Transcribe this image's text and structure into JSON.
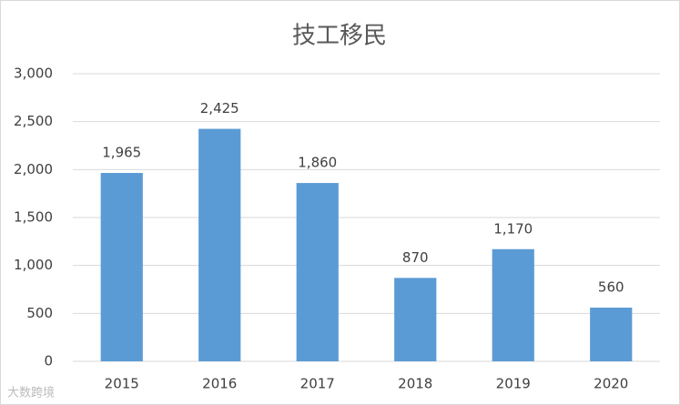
{
  "chart_data": {
    "type": "bar",
    "title": "技工移民",
    "categories": [
      "2015",
      "2016",
      "2017",
      "2018",
      "2019",
      "2020"
    ],
    "values": [
      1965,
      2425,
      1860,
      870,
      1170,
      560
    ],
    "value_labels": [
      "1,965",
      "2,425",
      "1,860",
      "870",
      "1,170",
      "560"
    ],
    "color": "#5b9bd5",
    "ylim": [
      0,
      3000
    ],
    "yticks": [
      0,
      500,
      {
        "value": 1000,
        "label": "1,000"
      },
      {
        "value": 1500,
        "label": "1,500"
      },
      {
        "value": 2000,
        "label": "2,000"
      },
      {
        "value": 2500,
        "label": "2,500"
      },
      {
        "value": 3000,
        "label": "3,000"
      }
    ],
    "grid": true,
    "watermark": "大数跨境"
  }
}
